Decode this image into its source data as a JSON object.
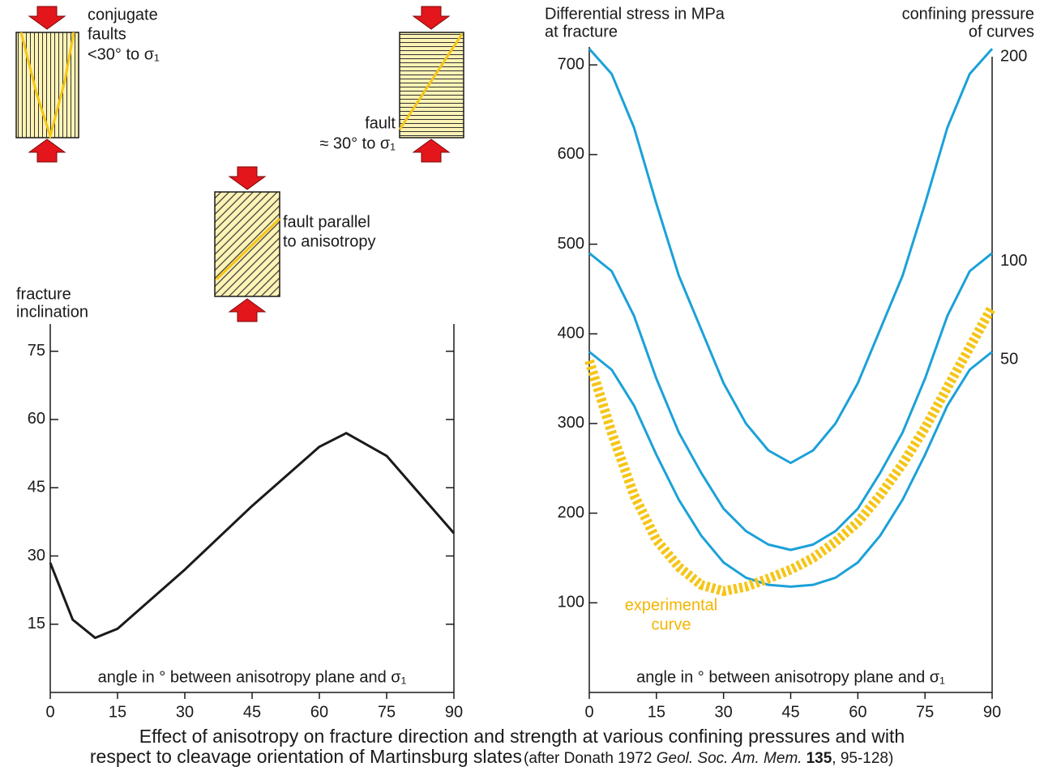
{
  "diagrams": [
    {
      "label": [
        "conjugate",
        "faults",
        "<30° to σ₁"
      ]
    },
    {
      "label": [
        "fault",
        "≈ 30° to σ₁"
      ]
    },
    {
      "label": [
        "fault parallel",
        "to anisotropy"
      ]
    }
  ],
  "chart_data": [
    {
      "type": "line",
      "y_label": [
        "fracture",
        "inclination"
      ],
      "x_label": "angle in ° between anisotropy plane and σ₁",
      "x": [
        0,
        5,
        10,
        15,
        30,
        45,
        60,
        66,
        75,
        90
      ],
      "series": [
        {
          "color": "#1a1a1a",
          "values": [
            28.5,
            16,
            12,
            14,
            27,
            41,
            54,
            57,
            52,
            35
          ]
        }
      ],
      "xlim": [
        0,
        90
      ],
      "ylim": [
        0,
        81
      ],
      "xticks": [
        0,
        15,
        30,
        45,
        60,
        75,
        90
      ],
      "yticks": [
        15,
        30,
        45,
        60,
        75
      ]
    },
    {
      "type": "line",
      "y_label": [
        "Differential stress in MPa",
        "at fracture"
      ],
      "y2_label": [
        "confining pressure",
        "of curves"
      ],
      "x_label": "angle in ° between anisotropy plane and σ₁",
      "x": [
        0,
        5,
        10,
        15,
        20,
        25,
        30,
        35,
        40,
        45,
        50,
        55,
        60,
        65,
        70,
        75,
        80,
        85,
        90
      ],
      "series": [
        {
          "name": "200",
          "color": "#1ba1d8",
          "values": [
            718,
            690,
            630,
            545,
            465,
            405,
            345,
            300,
            270,
            256,
            270,
            300,
            345,
            405,
            465,
            545,
            630,
            690,
            718
          ]
        },
        {
          "name": "100",
          "color": "#1ba1d8",
          "values": [
            490,
            470,
            420,
            350,
            290,
            245,
            205,
            180,
            165,
            159,
            165,
            180,
            205,
            245,
            290,
            350,
            420,
            470,
            490
          ]
        },
        {
          "name": "50",
          "color": "#1ba1d8",
          "values": [
            380,
            360,
            320,
            265,
            215,
            175,
            145,
            128,
            120,
            118,
            120,
            128,
            145,
            175,
            215,
            265,
            320,
            360,
            380
          ]
        },
        {
          "color": "#f5c518",
          "dashed": true,
          "values": [
            370,
            290,
            220,
            170,
            140,
            120,
            113,
            118,
            127,
            137,
            150,
            168,
            190,
            220,
            255,
            295,
            340,
            385,
            430
          ]
        }
      ],
      "annotation": [
        "experimental",
        "curve"
      ],
      "xlim": [
        0,
        90
      ],
      "ylim": [
        0,
        720
      ],
      "xticks": [
        0,
        15,
        30,
        45,
        60,
        75,
        90
      ],
      "yticks": [
        100,
        200,
        300,
        400,
        500,
        600,
        700
      ]
    }
  ],
  "caption": {
    "line1": "Effect of anisotropy on fracture direction and strength at various confining pressures and with",
    "line2": "respect to cleavage orientation of Martinsburg slates",
    "source": [
      "(after Donath 1972 ",
      "Geol. Soc. Am. Mem.",
      "135",
      ", 95-128)"
    ]
  }
}
